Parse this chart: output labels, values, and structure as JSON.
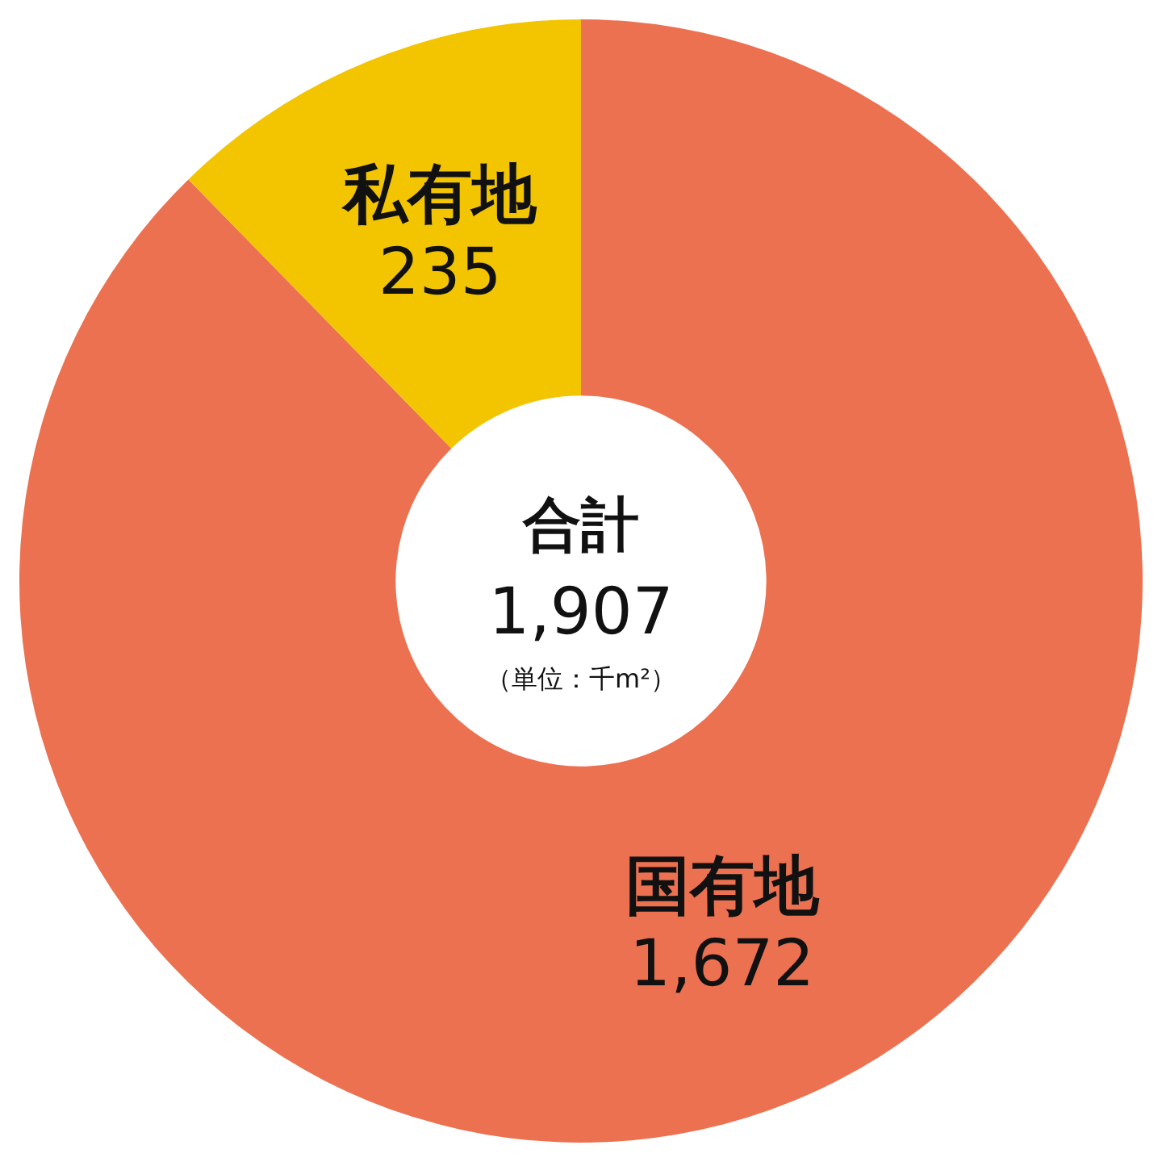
{
  "chart_data": {
    "type": "donut",
    "categories": [
      "国有地",
      "私有地"
    ],
    "values": [
      1672,
      235
    ],
    "value_labels": [
      "1,672",
      "235"
    ],
    "colors": [
      "#ec7150",
      "#f2c500"
    ],
    "annotations": [
      "合計",
      "1,907",
      "（単位：千m²）"
    ],
    "legend": false
  }
}
